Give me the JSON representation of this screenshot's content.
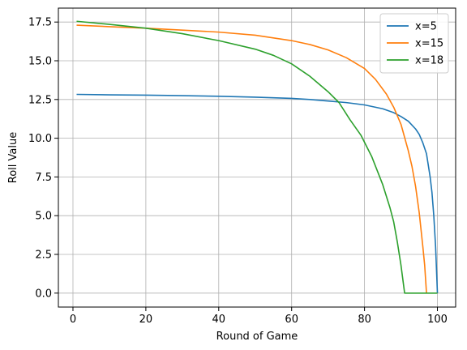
{
  "chart_data": {
    "type": "line",
    "title": "",
    "xlabel": "Round of Game",
    "ylabel": "Roll Value",
    "xlim": [
      -4,
      105
    ],
    "ylim": [
      -0.9,
      18.4
    ],
    "xticks": [
      0,
      20,
      40,
      60,
      80,
      100
    ],
    "yticks": [
      0.0,
      2.5,
      5.0,
      7.5,
      10.0,
      12.5,
      15.0,
      17.5
    ],
    "xtick_labels": [
      "0",
      "20",
      "40",
      "60",
      "80",
      "100"
    ],
    "ytick_labels": [
      "0.0",
      "2.5",
      "5.0",
      "7.5",
      "10.0",
      "12.5",
      "15.0",
      "17.5"
    ],
    "grid": true,
    "legend_position": "top-right",
    "series": [
      {
        "name": "x=5",
        "color": "#1f77b4",
        "points": [
          [
            1,
            12.83
          ],
          [
            10,
            12.8
          ],
          [
            20,
            12.78
          ],
          [
            30,
            12.75
          ],
          [
            40,
            12.71
          ],
          [
            50,
            12.65
          ],
          [
            60,
            12.57
          ],
          [
            65,
            12.5
          ],
          [
            70,
            12.4
          ],
          [
            75,
            12.3
          ],
          [
            80,
            12.15
          ],
          [
            85,
            11.9
          ],
          [
            88,
            11.65
          ],
          [
            90,
            11.4
          ],
          [
            92,
            11.1
          ],
          [
            94,
            10.6
          ],
          [
            95,
            10.25
          ],
          [
            96,
            9.7
          ],
          [
            97,
            9.0
          ],
          [
            98,
            7.5
          ],
          [
            98.5,
            6.5
          ],
          [
            99,
            5.0
          ],
          [
            99.5,
            3.0
          ],
          [
            100,
            0.0
          ]
        ]
      },
      {
        "name": "x=15",
        "color": "#ff7f0e",
        "points": [
          [
            1,
            17.3
          ],
          [
            10,
            17.2
          ],
          [
            20,
            17.1
          ],
          [
            30,
            16.98
          ],
          [
            40,
            16.85
          ],
          [
            50,
            16.65
          ],
          [
            60,
            16.3
          ],
          [
            65,
            16.05
          ],
          [
            70,
            15.7
          ],
          [
            75,
            15.2
          ],
          [
            80,
            14.5
          ],
          [
            83,
            13.8
          ],
          [
            86,
            12.85
          ],
          [
            88,
            12.0
          ],
          [
            90,
            10.9
          ],
          [
            92,
            9.2
          ],
          [
            93,
            8.2
          ],
          [
            94,
            6.9
          ],
          [
            95,
            5.2
          ],
          [
            96,
            3.0
          ],
          [
            96.5,
            1.8
          ],
          [
            97,
            0.0
          ]
        ]
      },
      {
        "name": "x=18",
        "color": "#2ca02c",
        "points": [
          [
            1,
            17.55
          ],
          [
            10,
            17.35
          ],
          [
            20,
            17.1
          ],
          [
            30,
            16.75
          ],
          [
            40,
            16.3
          ],
          [
            50,
            15.75
          ],
          [
            55,
            15.35
          ],
          [
            60,
            14.8
          ],
          [
            65,
            14.0
          ],
          [
            70,
            13.0
          ],
          [
            73,
            12.3
          ],
          [
            76,
            11.2
          ],
          [
            79,
            10.2
          ],
          [
            82,
            8.8
          ],
          [
            85,
            7.0
          ],
          [
            87,
            5.5
          ],
          [
            88,
            4.6
          ],
          [
            89,
            3.3
          ],
          [
            90,
            1.8
          ],
          [
            91,
            0.0
          ],
          [
            100,
            0.0
          ]
        ]
      }
    ]
  }
}
